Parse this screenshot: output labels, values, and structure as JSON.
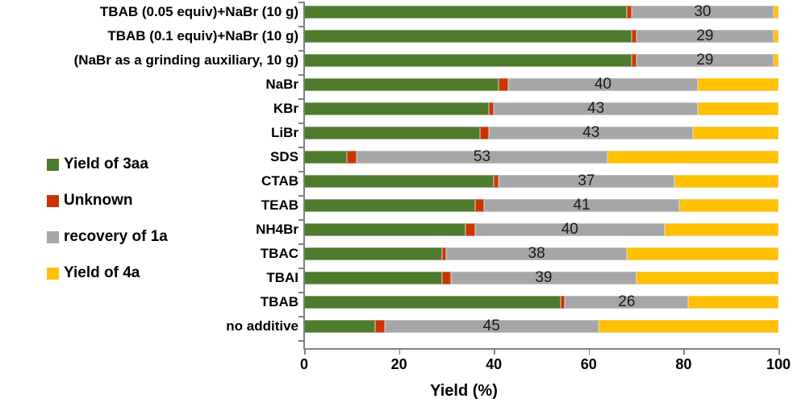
{
  "chart_data": {
    "type": "bar",
    "orientation": "horizontal-stacked",
    "title": "",
    "xlabel": "Yield (%)",
    "xlim": [
      0,
      100
    ],
    "xticks": [
      0,
      20,
      40,
      60,
      80,
      100
    ],
    "grid": false,
    "legend_position": "left-middle",
    "axis_color": "#808080",
    "text_color": "#000000",
    "categories": [
      "TBAB (0.05 equiv)+NaBr (10 g)",
      "TBAB (0.1 equiv)+NaBr (10 g)",
      "(NaBr as a grinding auxiliary, 10 g)",
      "NaBr",
      "KBr",
      "LiBr",
      "SDS",
      "CTAB",
      "TEAB",
      "NH4Br",
      "TBAC",
      "TBAI",
      "TBAB",
      "no additive"
    ],
    "series": [
      {
        "name": "Yield of 3aa",
        "color": "#4e7b2c",
        "values": [
          68,
          69,
          69,
          41,
          39,
          37,
          9,
          40,
          36,
          34,
          29,
          29,
          54,
          15
        ]
      },
      {
        "name": "Unknown",
        "color": "#cc3503",
        "values": [
          1,
          1,
          1,
          2,
          1,
          2,
          2,
          1,
          2,
          2,
          1,
          2,
          1,
          2
        ]
      },
      {
        "name": "recovery of 1a",
        "color": "#a6a6a6",
        "values": [
          30,
          29,
          29,
          40,
          43,
          43,
          53,
          37,
          41,
          40,
          38,
          39,
          26,
          45
        ]
      },
      {
        "name": "Yield of 4a",
        "color": "#ffc000",
        "values": [
          1,
          1,
          1,
          17,
          17,
          18,
          36,
          22,
          21,
          24,
          32,
          30,
          19,
          38
        ]
      }
    ],
    "data_labels": [
      "30",
      "29",
      "29",
      "40",
      "43",
      "43",
      "53",
      "37",
      "41",
      "40",
      "38",
      "39",
      "26",
      "45"
    ],
    "data_labels_series": "recovery of 1a"
  }
}
